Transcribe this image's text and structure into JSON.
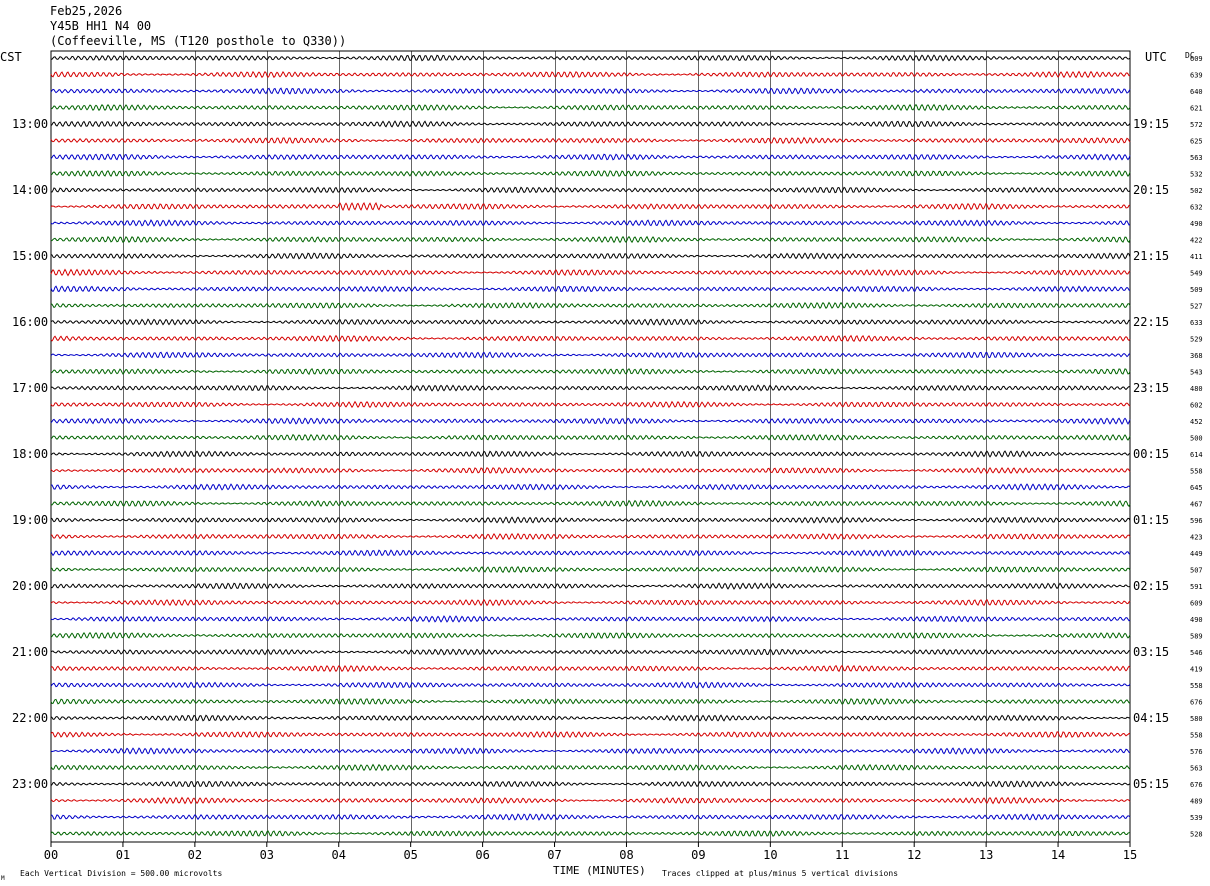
{
  "header": {
    "date": "Feb25,2026",
    "station": "Y45B HH1 N4 00",
    "location": "(Coffeeville, MS (T120 posthole to Q330))"
  },
  "labels": {
    "left_timezone": "CST",
    "right_timezone": "UTC",
    "dc_header": "DC",
    "x_axis_title": "TIME (MINUTES)",
    "scale_note": "Each Vertical Division =  500.00 microvolts",
    "clip_note": "Traces clipped at plus/minus 5 vertical divisions",
    "corner_mark": "M"
  },
  "colors": {
    "trace_cycle": [
      "#000000",
      "#d40000",
      "#0000c8",
      "#006400"
    ],
    "grid": "#000000"
  },
  "chart_data": {
    "type": "line",
    "description_kind": "helicorder seismogram",
    "x": {
      "label": "TIME (MINUTES)",
      "min": 0,
      "max": 15,
      "ticks": [
        "00",
        "01",
        "02",
        "03",
        "04",
        "05",
        "06",
        "07",
        "08",
        "09",
        "10",
        "11",
        "12",
        "13",
        "14",
        "15"
      ]
    },
    "hour_labels_cst": [
      "13:00",
      "14:00",
      "15:00",
      "16:00",
      "17:00",
      "18:00",
      "19:00",
      "20:00",
      "21:00",
      "22:00",
      "23:00"
    ],
    "hour_labels_utc": [
      "19:15",
      "20:15",
      "21:15",
      "22:15",
      "23:15",
      "00:15",
      "01:15",
      "02:15",
      "03:15",
      "04:15",
      "05:15"
    ],
    "trace_count": 48,
    "dc_offsets": [
      609,
      639,
      640,
      621,
      572,
      625,
      563,
      532,
      502,
      632,
      490,
      422,
      411,
      549,
      509,
      527,
      633,
      529,
      368,
      543,
      480,
      602,
      452,
      500,
      614,
      558,
      645,
      467,
      596,
      423,
      449,
      507,
      591,
      609,
      490,
      589,
      546,
      419,
      558,
      676,
      580,
      558,
      576,
      563,
      676,
      489,
      539,
      528
    ],
    "events": [
      {
        "trace": 9,
        "minute_start": 4.0,
        "minute_end": 4.6
      }
    ]
  }
}
